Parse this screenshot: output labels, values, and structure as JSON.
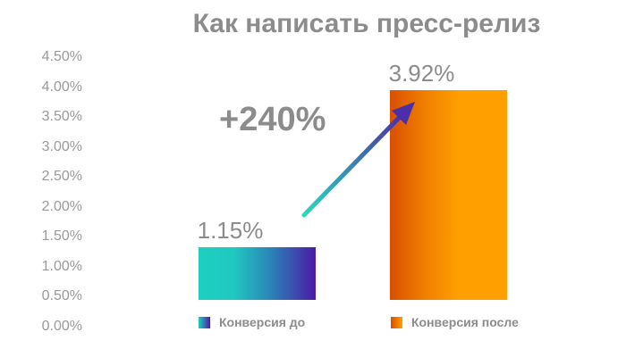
{
  "chart_data": {
    "type": "bar",
    "title": "Как написать пресс-релиз",
    "categories": [
      "Конверсия до",
      "Конверсия после"
    ],
    "values": [
      1.15,
      3.92
    ],
    "value_labels": [
      "1.15%",
      "3.92%"
    ],
    "ylim": [
      0,
      4.5
    ],
    "yticks": [
      "0.00%",
      "0.50%",
      "1.00%",
      "1.50%",
      "2.00%",
      "2.50%",
      "3.00%",
      "3.50%",
      "4.00%",
      "4.50%"
    ],
    "grid": false,
    "annotation": "+240%",
    "legend": [
      {
        "label": "Конверсия до",
        "color_start": "#1ecfc0",
        "color_end": "#4b1aa6"
      },
      {
        "label": "Конверсия после",
        "color_start": "#d94f00",
        "color_end": "#ffa000"
      }
    ],
    "arrow_color_start": "#2ad9c0",
    "arrow_color_end": "#4a2fa8"
  }
}
